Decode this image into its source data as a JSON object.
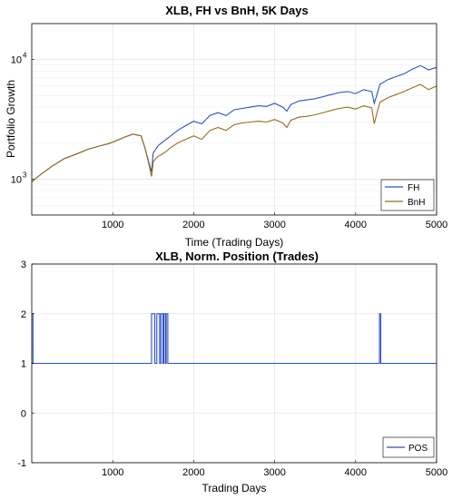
{
  "chart_data": [
    {
      "type": "line",
      "title": "XLB, FH vs BnH, 5K Days",
      "xlabel": "Time (Trading Days)",
      "ylabel": "Portfolio Growth",
      "xlim": [
        0,
        5000
      ],
      "ylim": [
        500,
        20000
      ],
      "yscale": "log",
      "grid": true,
      "legend_position": "bottom-right",
      "xticks": [
        {
          "value": 1000,
          "label": "1000"
        },
        {
          "value": 2000,
          "label": "2000"
        },
        {
          "value": 3000,
          "label": "3000"
        },
        {
          "value": 4000,
          "label": "4000"
        },
        {
          "value": 5000,
          "label": "5000"
        }
      ],
      "yticks": [
        {
          "value": 1000,
          "base": "10",
          "exp": "3"
        },
        {
          "value": 10000,
          "base": "10",
          "exp": "4"
        }
      ],
      "series": [
        {
          "name": "FH",
          "color": "#2b4fc4",
          "points": [
            [
              0,
              950
            ],
            [
              100,
              1080
            ],
            [
              250,
              1280
            ],
            [
              400,
              1480
            ],
            [
              550,
              1620
            ],
            [
              700,
              1780
            ],
            [
              850,
              1900
            ],
            [
              950,
              1980
            ],
            [
              1050,
              2100
            ],
            [
              1150,
              2250
            ],
            [
              1250,
              2380
            ],
            [
              1350,
              2300
            ],
            [
              1400,
              1800
            ],
            [
              1450,
              1350
            ],
            [
              1480,
              1150
            ],
            [
              1500,
              1650
            ],
            [
              1560,
              1900
            ],
            [
              1600,
              2000
            ],
            [
              1660,
              2150
            ],
            [
              1700,
              2250
            ],
            [
              1800,
              2550
            ],
            [
              1900,
              2800
            ],
            [
              2000,
              3050
            ],
            [
              2100,
              2900
            ],
            [
              2200,
              3400
            ],
            [
              2300,
              3600
            ],
            [
              2400,
              3400
            ],
            [
              2500,
              3800
            ],
            [
              2600,
              3900
            ],
            [
              2700,
              4000
            ],
            [
              2800,
              4100
            ],
            [
              2900,
              4050
            ],
            [
              3000,
              4300
            ],
            [
              3100,
              4000
            ],
            [
              3150,
              3700
            ],
            [
              3200,
              4200
            ],
            [
              3300,
              4500
            ],
            [
              3400,
              4600
            ],
            [
              3500,
              4700
            ],
            [
              3600,
              4900
            ],
            [
              3700,
              5100
            ],
            [
              3800,
              5300
            ],
            [
              3900,
              5400
            ],
            [
              4000,
              5200
            ],
            [
              4100,
              5600
            ],
            [
              4200,
              5400
            ],
            [
              4230,
              4300
            ],
            [
              4260,
              5000
            ],
            [
              4300,
              6200
            ],
            [
              4400,
              6800
            ],
            [
              4500,
              7200
            ],
            [
              4600,
              7600
            ],
            [
              4700,
              8300
            ],
            [
              4800,
              8900
            ],
            [
              4900,
              8200
            ],
            [
              5000,
              8600
            ]
          ]
        },
        {
          "name": "BnH",
          "color": "#9a6b1a",
          "points": [
            [
              0,
              950
            ],
            [
              100,
              1080
            ],
            [
              250,
              1280
            ],
            [
              400,
              1480
            ],
            [
              550,
              1620
            ],
            [
              700,
              1780
            ],
            [
              850,
              1900
            ],
            [
              950,
              1980
            ],
            [
              1050,
              2100
            ],
            [
              1150,
              2250
            ],
            [
              1250,
              2380
            ],
            [
              1350,
              2300
            ],
            [
              1400,
              1800
            ],
            [
              1450,
              1300
            ],
            [
              1480,
              1050
            ],
            [
              1500,
              1400
            ],
            [
              1560,
              1550
            ],
            [
              1600,
              1600
            ],
            [
              1660,
              1700
            ],
            [
              1700,
              1800
            ],
            [
              1800,
              2000
            ],
            [
              1900,
              2150
            ],
            [
              2000,
              2300
            ],
            [
              2100,
              2150
            ],
            [
              2200,
              2550
            ],
            [
              2300,
              2700
            ],
            [
              2400,
              2550
            ],
            [
              2500,
              2850
            ],
            [
              2600,
              2950
            ],
            [
              2700,
              3000
            ],
            [
              2800,
              3050
            ],
            [
              2900,
              3000
            ],
            [
              3000,
              3150
            ],
            [
              3100,
              2950
            ],
            [
              3150,
              2700
            ],
            [
              3200,
              3100
            ],
            [
              3300,
              3300
            ],
            [
              3400,
              3350
            ],
            [
              3500,
              3450
            ],
            [
              3600,
              3600
            ],
            [
              3700,
              3750
            ],
            [
              3800,
              3900
            ],
            [
              3900,
              4000
            ],
            [
              4000,
              3850
            ],
            [
              4100,
              4100
            ],
            [
              4200,
              3950
            ],
            [
              4230,
              2900
            ],
            [
              4260,
              3500
            ],
            [
              4300,
              4400
            ],
            [
              4400,
              4800
            ],
            [
              4500,
              5100
            ],
            [
              4600,
              5400
            ],
            [
              4700,
              5800
            ],
            [
              4800,
              6200
            ],
            [
              4900,
              5600
            ],
            [
              5000,
              6000
            ]
          ]
        }
      ]
    },
    {
      "type": "line",
      "title": "XLB, Norm. Position (Trades)",
      "xlabel": "Trading Days",
      "ylabel": "",
      "xlim": [
        0,
        5000
      ],
      "ylim": [
        -1,
        3
      ],
      "grid": true,
      "legend_position": "bottom-right",
      "xticks": [
        {
          "value": 1000,
          "label": "1000"
        },
        {
          "value": 2000,
          "label": "2000"
        },
        {
          "value": 3000,
          "label": "3000"
        },
        {
          "value": 4000,
          "label": "4000"
        },
        {
          "value": 5000,
          "label": "5000"
        }
      ],
      "yticks": [
        {
          "value": -1,
          "label": "-1"
        },
        {
          "value": 0,
          "label": "0"
        },
        {
          "value": 1,
          "label": "1"
        },
        {
          "value": 2,
          "label": "2"
        },
        {
          "value": 3,
          "label": "3"
        }
      ],
      "series": [
        {
          "name": "POS",
          "color": "#2b4fc4",
          "baseline": 1,
          "pulses": [
            [
              0,
              15
            ],
            [
              1480,
              1520
            ],
            [
              1545,
              1580
            ],
            [
              1595,
              1620
            ],
            [
              1630,
              1650
            ],
            [
              1660,
              1680
            ],
            [
              4295,
              4310
            ]
          ],
          "pulse_value": 2
        }
      ]
    }
  ]
}
